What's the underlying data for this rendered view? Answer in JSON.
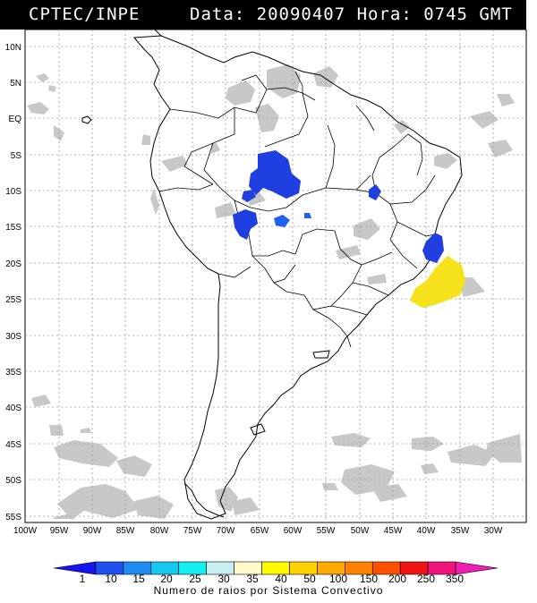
{
  "header": {
    "org": "CPTEC/INPE",
    "stamp": "Data: 20090407 Hora: 0745 GMT"
  },
  "map": {
    "lat_labels": [
      "10N",
      "5N",
      "EQ",
      "5S",
      "10S",
      "15S",
      "20S",
      "25S",
      "30S",
      "35S",
      "40S",
      "45S",
      "50S",
      "55S"
    ],
    "lon_labels": [
      "100W",
      "95W",
      "90W",
      "85W",
      "80W",
      "75W",
      "70W",
      "65W",
      "60W",
      "55W",
      "50W",
      "45W",
      "40W",
      "35W",
      "30W"
    ],
    "colors": {
      "cloud": "#c8c8c8",
      "cluster_blue": "#1f3fe0",
      "cluster_mid_blue": "#2060f0",
      "cluster_yellow": "#f5e21a",
      "coast": "#000000",
      "grid": "#9a9a9a"
    }
  },
  "legend": {
    "values": [
      "1",
      "10",
      "15",
      "20",
      "25",
      "30",
      "35",
      "40",
      "50",
      "100",
      "150",
      "200",
      "250",
      "350"
    ],
    "colors": [
      "#1414f0",
      "#1e50f0",
      "#1e8cf0",
      "#14c8f0",
      "#14f0f0",
      "#c8f0f0",
      "#fffac8",
      "#fffa00",
      "#ffd200",
      "#ffaa00",
      "#ff8200",
      "#ff5000",
      "#f01414",
      "#f0147d",
      "#f01eb4"
    ],
    "caption": "Numero de raios por Sistema Convectivo"
  }
}
